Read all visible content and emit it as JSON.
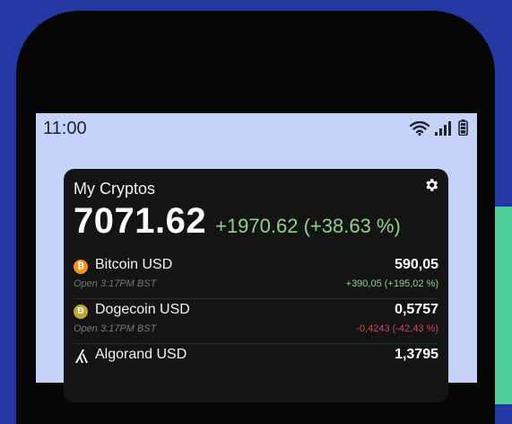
{
  "status_bar": {
    "time": "11:00"
  },
  "widget": {
    "title": "My Cryptos",
    "total": "7071.62",
    "total_change": "+1970.62 (+38.63 %)"
  },
  "coins": [
    {
      "name": "Bitcoin USD",
      "price": "590,05",
      "sub": "Open 3:17PM BST",
      "change": "+390,05 (+195,02 %)",
      "direction": "up",
      "icon": "bitcoin-icon",
      "color": "#f7931a",
      "glyph": "₿"
    },
    {
      "name": "Dogecoin USD",
      "price": "0,5757",
      "sub": "Open 3:17PM BST",
      "change": "-0,4243 (-42,43 %)",
      "direction": "down",
      "icon": "dogecoin-icon",
      "color": "#c2a633",
      "glyph": "Ð"
    },
    {
      "name": "Algorand USD",
      "price": "1,3795",
      "sub": "",
      "change": "",
      "direction": "up",
      "icon": "algorand-icon",
      "color": "#000000",
      "glyph": ""
    }
  ],
  "colors": {
    "positive": "#8fd08f",
    "negative": "#c94a5c",
    "background": "#2338a3",
    "accent": "#4fcf9a"
  }
}
